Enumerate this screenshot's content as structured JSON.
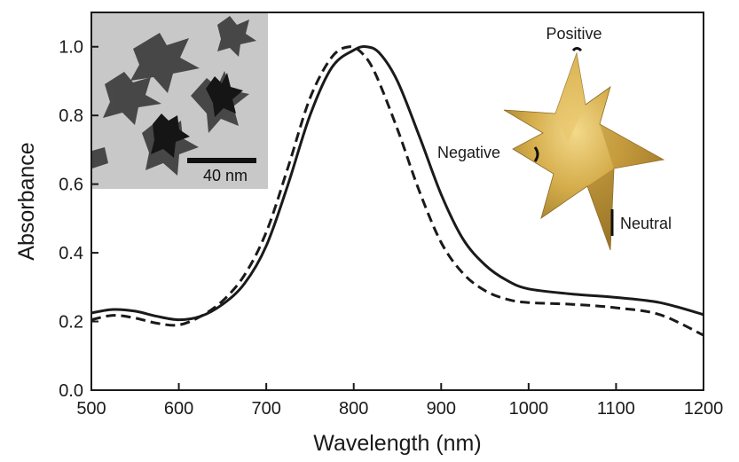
{
  "chart_data": {
    "type": "line",
    "xlabel": "Wavelength (nm)",
    "ylabel": "Absorbance",
    "xlim": [
      500,
      1200
    ],
    "ylim": [
      0,
      1.1
    ],
    "xticks": [
      500,
      600,
      700,
      800,
      900,
      1000,
      1100,
      1200
    ],
    "yticks": [
      0.0,
      0.2,
      0.4,
      0.6,
      0.8,
      1.0
    ],
    "ytick_labels": [
      "0.0",
      "0.2",
      "0.4",
      "0.6",
      "0.8",
      "1.0"
    ],
    "grid": false,
    "series": [
      {
        "style": "solid",
        "color": "#1a1a1a",
        "x": [
          500,
          525,
          550,
          575,
          600,
          625,
          650,
          675,
          700,
          725,
          750,
          775,
          800,
          815,
          830,
          850,
          875,
          900,
          925,
          950,
          975,
          1000,
          1050,
          1100,
          1150,
          1200
        ],
        "y": [
          0.225,
          0.235,
          0.23,
          0.215,
          0.205,
          0.215,
          0.25,
          0.31,
          0.42,
          0.6,
          0.8,
          0.94,
          0.99,
          1.0,
          0.98,
          0.9,
          0.74,
          0.57,
          0.44,
          0.365,
          0.32,
          0.295,
          0.28,
          0.27,
          0.255,
          0.22
        ]
      },
      {
        "style": "dashed",
        "color": "#1a1a1a",
        "x": [
          500,
          525,
          550,
          575,
          600,
          625,
          650,
          675,
          700,
          725,
          750,
          775,
          795,
          810,
          825,
          850,
          875,
          900,
          925,
          950,
          975,
          1000,
          1050,
          1100,
          1150,
          1200
        ],
        "y": [
          0.205,
          0.218,
          0.21,
          0.195,
          0.19,
          0.215,
          0.26,
          0.335,
          0.46,
          0.65,
          0.85,
          0.97,
          1.0,
          0.98,
          0.92,
          0.76,
          0.58,
          0.43,
          0.34,
          0.29,
          0.265,
          0.255,
          0.25,
          0.24,
          0.22,
          0.16
        ]
      }
    ],
    "annotations": {
      "positive": "Positive",
      "negative": "Negative",
      "neutral": "Neutral",
      "scale_bar": "40 nm"
    }
  },
  "colors": {
    "line": "#1a1a1a",
    "star_gold": "#c9a13c",
    "tem_background": "#c8c8c8"
  },
  "inset_icon": "tem-micrograph-nanostars",
  "model_icon": "gold-nanostar-3d"
}
